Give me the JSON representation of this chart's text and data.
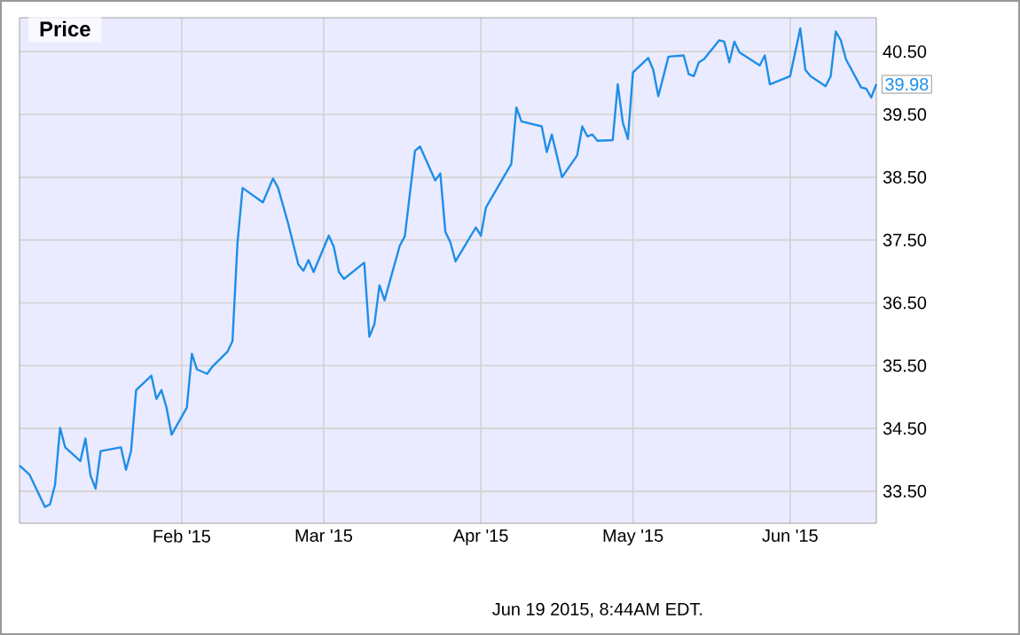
{
  "chart_data": {
    "type": "line",
    "title": "Price",
    "annotations": [
      {
        "text": "39.98",
        "x": "2015-06-18",
        "y": 39.98
      },
      "Jun 19 2015, 8:44AM EDT."
    ],
    "x": [
      "2014-12-31",
      "2015-01-02",
      "2015-01-05",
      "2015-01-06",
      "2015-01-07",
      "2015-01-08",
      "2015-01-09",
      "2015-01-12",
      "2015-01-13",
      "2015-01-14",
      "2015-01-15",
      "2015-01-16",
      "2015-01-20",
      "2015-01-21",
      "2015-01-22",
      "2015-01-23",
      "2015-01-26",
      "2015-01-27",
      "2015-01-28",
      "2015-01-29",
      "2015-01-30",
      "2015-02-02",
      "2015-02-03",
      "2015-02-04",
      "2015-02-06",
      "2015-02-07",
      "2015-02-10",
      "2015-02-11",
      "2015-02-12",
      "2015-02-13",
      "2015-02-17",
      "2015-02-19",
      "2015-02-20",
      "2015-02-22",
      "2015-02-24",
      "2015-02-25",
      "2015-02-26",
      "2015-02-27",
      "2015-03-02",
      "2015-03-03",
      "2015-03-04",
      "2015-03-05",
      "2015-03-09",
      "2015-03-10",
      "2015-03-11",
      "2015-03-12",
      "2015-03-13",
      "2015-03-16",
      "2015-03-17",
      "2015-03-19",
      "2015-03-20",
      "2015-03-23",
      "2015-03-24",
      "2015-03-25",
      "2015-03-26",
      "2015-03-27",
      "2015-03-31",
      "2015-04-01",
      "2015-04-02",
      "2015-04-07",
      "2015-04-08",
      "2015-04-09",
      "2015-04-13",
      "2015-04-14",
      "2015-04-15",
      "2015-04-17",
      "2015-04-20",
      "2015-04-21",
      "2015-04-22",
      "2015-04-23",
      "2015-04-24",
      "2015-04-27",
      "2015-04-28",
      "2015-04-29",
      "2015-04-30",
      "2015-05-01",
      "2015-05-04",
      "2015-05-05",
      "2015-05-06",
      "2015-05-08",
      "2015-05-11",
      "2015-05-12",
      "2015-05-13",
      "2015-05-14",
      "2015-05-15",
      "2015-05-18",
      "2015-05-19",
      "2015-05-20",
      "2015-05-21",
      "2015-05-22",
      "2015-05-26",
      "2015-05-27",
      "2015-05-28",
      "2015-06-01",
      "2015-06-03",
      "2015-06-04",
      "2015-06-05",
      "2015-06-08",
      "2015-06-09",
      "2015-06-10",
      "2015-06-11",
      "2015-06-12",
      "2015-06-15",
      "2015-06-16",
      "2015-06-17",
      "2015-06-18"
    ],
    "series": [
      {
        "color": "#1f8ee8",
        "values": [
          33.91,
          33.76,
          33.25,
          33.29,
          33.6,
          34.51,
          34.2,
          33.98,
          34.34,
          33.75,
          33.54,
          34.14,
          34.2,
          33.84,
          34.14,
          35.11,
          35.34,
          34.97,
          35.11,
          34.83,
          34.4,
          34.83,
          35.69,
          35.44,
          35.37,
          35.48,
          35.72,
          35.89,
          37.46,
          38.33,
          38.1,
          38.48,
          38.33,
          37.76,
          37.11,
          37.01,
          37.18,
          36.99,
          37.57,
          37.39,
          36.99,
          36.88,
          37.14,
          35.96,
          36.16,
          36.78,
          36.54,
          37.41,
          37.56,
          38.92,
          38.99,
          38.45,
          38.56,
          37.63,
          37.46,
          37.16,
          37.7,
          37.57,
          38.02,
          38.71,
          39.61,
          39.39,
          39.31,
          38.9,
          39.18,
          38.5,
          38.85,
          39.31,
          39.15,
          39.18,
          39.08,
          39.09,
          39.98,
          39.37,
          39.11,
          40.17,
          40.4,
          40.21,
          39.79,
          40.42,
          40.44,
          40.14,
          40.11,
          40.33,
          40.38,
          40.68,
          40.66,
          40.33,
          40.66,
          40.49,
          40.28,
          40.44,
          39.98,
          40.11,
          40.87,
          40.21,
          40.11,
          39.95,
          40.11,
          40.82,
          40.68,
          40.38,
          39.93,
          39.91,
          39.77,
          39.98
        ]
      }
    ],
    "xlim": [
      "2014-12-31",
      "2015-06-18"
    ],
    "xticks": [
      {
        "value": "2015-02-01",
        "label": "Feb '15"
      },
      {
        "value": "2015-03-01",
        "label": "Mar '15"
      },
      {
        "value": "2015-04-01",
        "label": "Apr '15"
      },
      {
        "value": "2015-05-01",
        "label": "May '15"
      },
      {
        "value": "2015-06-01",
        "label": "Jun '15"
      }
    ],
    "ylim": [
      32.99,
      41.04
    ],
    "yticks": [
      {
        "value": 33.5,
        "label": "33.50"
      },
      {
        "value": 34.5,
        "label": "34.50"
      },
      {
        "value": 35.5,
        "label": "35.50"
      },
      {
        "value": 36.5,
        "label": "36.50"
      },
      {
        "value": 37.5,
        "label": "37.50"
      },
      {
        "value": 38.5,
        "label": "38.50"
      },
      {
        "value": 39.5,
        "label": "39.50"
      },
      {
        "value": 40.5,
        "label": "40.50"
      }
    ],
    "grid": true
  }
}
